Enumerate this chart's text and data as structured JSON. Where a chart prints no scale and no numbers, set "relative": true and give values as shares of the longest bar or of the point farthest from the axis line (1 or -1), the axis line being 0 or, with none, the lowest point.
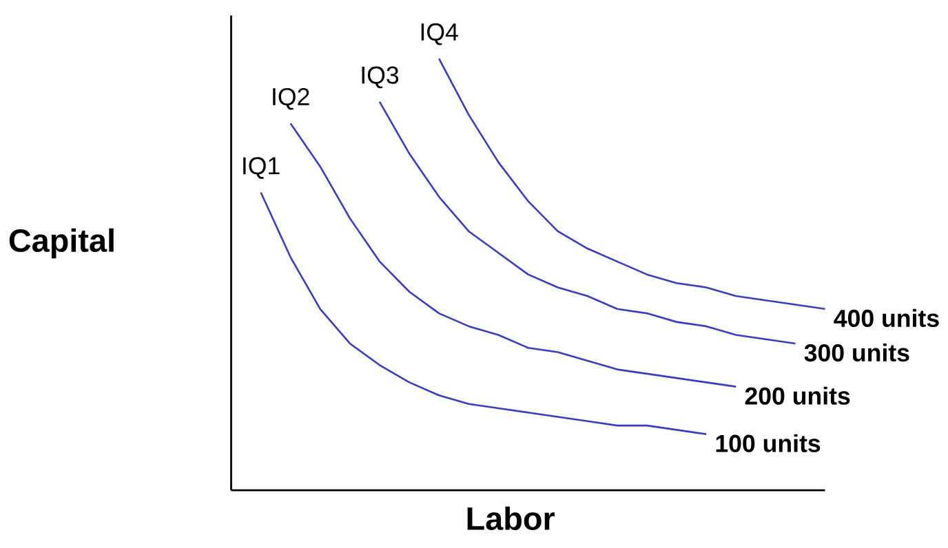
{
  "chart_data": {
    "type": "line",
    "relative": true,
    "xlabel": "Labor",
    "ylabel": "Capital",
    "categories": [
      null,
      null,
      null,
      null,
      null,
      null,
      null,
      null,
      null,
      null,
      null,
      null,
      null,
      null,
      null,
      null,
      null,
      null,
      null,
      null,
      null
    ],
    "series": [
      {
        "name": "IQ1",
        "color": "#3a3ac4",
        "values": [
          null,
          0.69,
          0.54,
          0.42,
          0.34,
          0.29,
          0.25,
          0.22,
          0.2,
          0.19,
          0.18,
          0.17,
          0.16,
          0.15,
          0.15,
          0.14,
          0.13,
          null,
          null,
          null,
          null
        ]
      },
      {
        "name": "IQ2",
        "color": "#3a3ac4",
        "values": [
          null,
          null,
          0.85,
          0.75,
          0.63,
          0.53,
          0.46,
          0.41,
          0.38,
          0.36,
          0.33,
          0.32,
          0.3,
          0.28,
          0.27,
          0.26,
          0.25,
          0.24,
          null,
          null,
          null
        ]
      },
      {
        "name": "IQ3",
        "color": "#3a3ac4",
        "values": [
          null,
          null,
          null,
          null,
          null,
          0.9,
          0.78,
          0.68,
          0.6,
          0.55,
          0.5,
          0.47,
          0.45,
          0.42,
          0.41,
          0.39,
          0.38,
          0.36,
          0.35,
          0.34,
          null
        ]
      },
      {
        "name": "IQ4",
        "color": "#3a3ac4",
        "values": [
          null,
          null,
          null,
          null,
          null,
          null,
          null,
          1.0,
          0.87,
          0.76,
          0.67,
          0.6,
          0.56,
          0.53,
          0.5,
          0.48,
          0.47,
          0.45,
          0.44,
          0.43,
          0.42
        ]
      }
    ],
    "annotations": [
      "100 units",
      "200 units",
      "300 units",
      "400 units"
    ],
    "marker": "none",
    "line_style": "solid"
  }
}
